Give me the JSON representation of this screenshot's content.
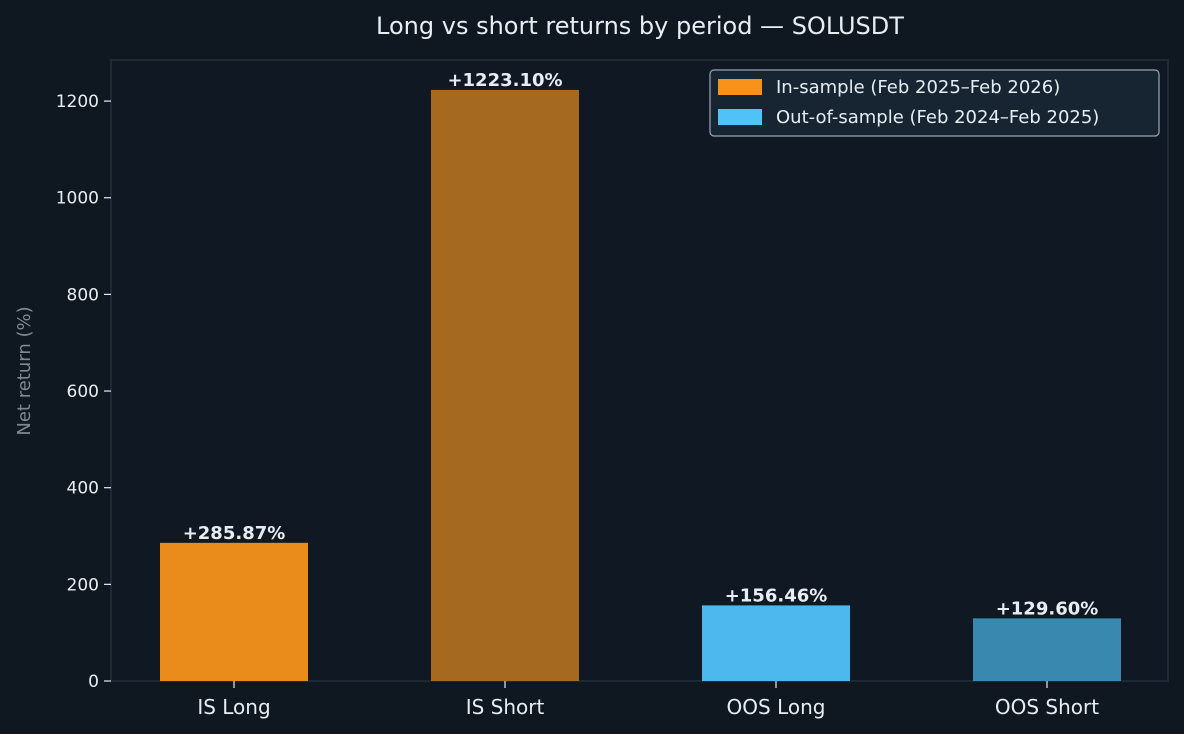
{
  "chart_data": {
    "type": "bar",
    "title": "Long vs short returns by period — SOLUSDT",
    "xlabel": "",
    "ylabel": "Net return (%)",
    "categories": [
      "IS Long",
      "IS Short",
      "OOS Long",
      "OOS Short"
    ],
    "values": [
      285.87,
      1223.1,
      156.46,
      129.6
    ],
    "data_labels": [
      "+285.87%",
      "+1223.10%",
      "+156.46%",
      "+129.60%"
    ],
    "bar_colors": [
      "#ea8c1b",
      "#a56a1f",
      "#4cb8ee",
      "#3888b0"
    ],
    "ylim": [
      0,
      1285
    ],
    "yticks": [
      0,
      200,
      400,
      600,
      800,
      1000,
      1200
    ],
    "grid": false,
    "legend_position": "top-right",
    "legend": [
      {
        "label": "In-sample (Feb 2025–Feb 2026)",
        "color": "#f7931a"
      },
      {
        "label": "Out-of-sample (Feb 2024–Feb 2025)",
        "color": "#4fc3f7"
      }
    ],
    "colors": {
      "background": "#0f1720",
      "plot_background": "#101923",
      "frame": "#1d2a36",
      "text": "#e6edf3",
      "muted_text": "#7d8893",
      "legend_background": "#172532",
      "legend_border": "#9aa6b2"
    }
  }
}
